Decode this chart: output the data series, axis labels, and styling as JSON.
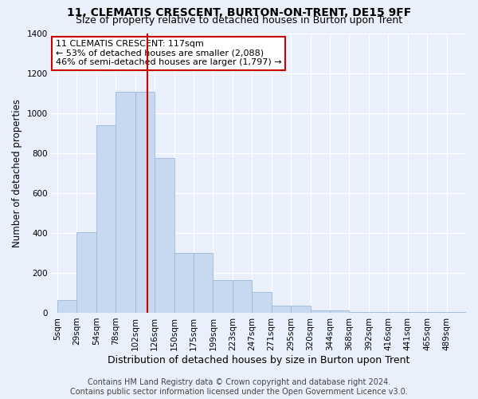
{
  "title": "11, CLEMATIS CRESCENT, BURTON-ON-TRENT, DE15 9FF",
  "subtitle": "Size of property relative to detached houses in Burton upon Trent",
  "xlabel": "Distribution of detached houses by size in Burton upon Trent",
  "ylabel": "Number of detached properties",
  "footnote1": "Contains HM Land Registry data © Crown copyright and database right 2024.",
  "footnote2": "Contains public sector information licensed under the Open Government Licence v3.0.",
  "annotation_line1": "11 CLEMATIS CRESCENT: 117sqm",
  "annotation_line2": "← 53% of detached houses are smaller (2,088)",
  "annotation_line3": "46% of semi-detached houses are larger (1,797) →",
  "property_size": 117,
  "bar_categories": [
    "5sqm",
    "29sqm",
    "54sqm",
    "78sqm",
    "102sqm",
    "126sqm",
    "150sqm",
    "175sqm",
    "199sqm",
    "223sqm",
    "247sqm",
    "271sqm",
    "295sqm",
    "320sqm",
    "344sqm",
    "368sqm",
    "392sqm",
    "416sqm",
    "441sqm",
    "465sqm",
    "489sqm"
  ],
  "bar_left_edges": [
    5,
    29,
    54,
    78,
    102,
    126,
    150,
    175,
    199,
    223,
    247,
    271,
    295,
    320,
    344,
    368,
    392,
    416,
    441,
    465,
    489
  ],
  "bar_heights": [
    65,
    405,
    940,
    1105,
    1105,
    775,
    300,
    300,
    165,
    165,
    105,
    35,
    35,
    10,
    10,
    5,
    5,
    5,
    5,
    5,
    5
  ],
  "bar_color": "#c6d9f0",
  "bar_edge_color": "#9ab8d8",
  "vline_x": 117,
  "vline_color": "#cc0000",
  "ylim": [
    0,
    1400
  ],
  "yticks": [
    0,
    200,
    400,
    600,
    800,
    1000,
    1200,
    1400
  ],
  "bg_color": "#eaf0fb",
  "annotation_box_facecolor": "white",
  "annotation_box_edgecolor": "#cc0000",
  "title_fontsize": 10,
  "subtitle_fontsize": 9,
  "xlabel_fontsize": 9,
  "ylabel_fontsize": 8.5,
  "annotation_fontsize": 8,
  "tick_fontsize": 7.5,
  "footnote_fontsize": 7
}
